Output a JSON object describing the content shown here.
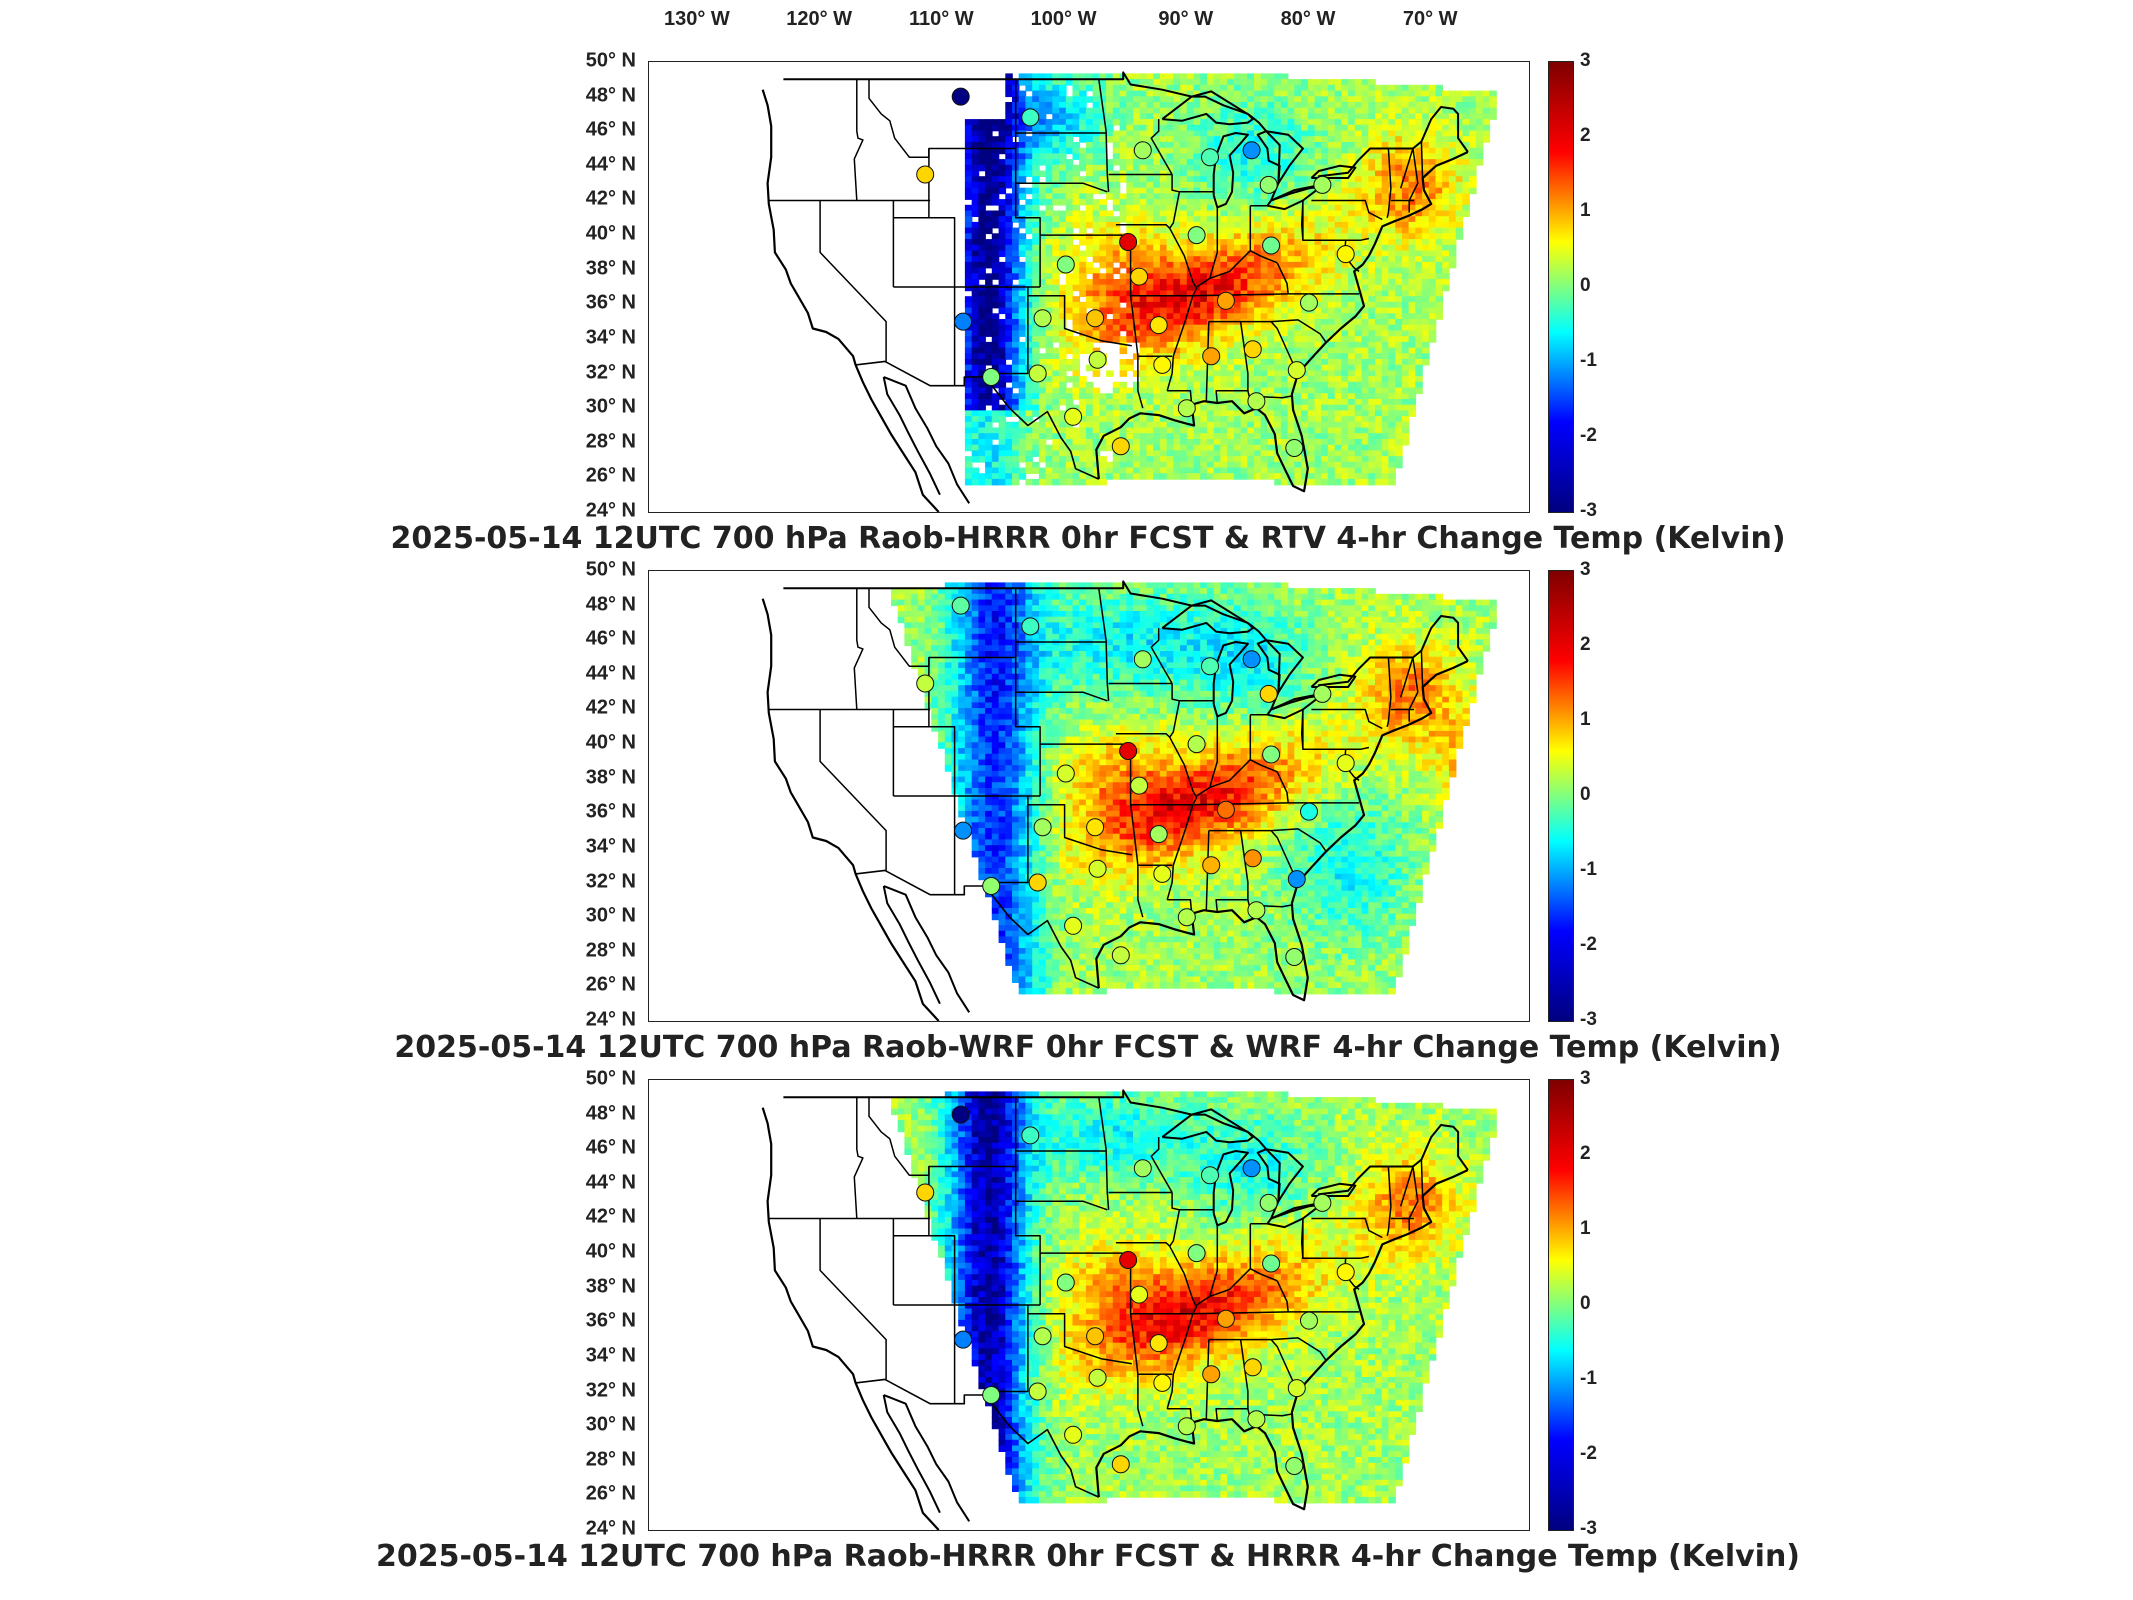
{
  "longitude_labels": [
    "130° W",
    "120° W",
    "110° W",
    "100° W",
    "90° W",
    "80° W",
    "70° W"
  ],
  "latitude_labels": [
    "50° N",
    "48° N",
    "46° N",
    "44° N",
    "42° N",
    "40° N",
    "38° N",
    "36° N",
    "34° N",
    "32° N",
    "30° N",
    "28° N",
    "26° N",
    "24° N"
  ],
  "colorbar": {
    "ticks": [
      "3",
      "2",
      "1",
      "0",
      "-1",
      "-2",
      "-3"
    ],
    "range": [
      -3,
      3
    ],
    "colormap": "jet",
    "stops": [
      "#00007f",
      "#0000ff",
      "#00ffff",
      "#ffff00",
      "#ff0000",
      "#7f0000"
    ]
  },
  "panels": [
    {
      "title": "2025-05-14 12UTC 700 hPa Raob-HRRR 0hr FCST & RTV 4-hr Change Temp (Kelvin)",
      "field": "rtv"
    },
    {
      "title": "2025-05-14 12UTC 700 hPa Raob-WRF 0hr FCST & WRF 4-hr Change Temp (Kelvin)",
      "field": "wrf"
    },
    {
      "title": "2025-05-14 12UTC 700 hPa Raob-HRRR 0hr FCST & HRRR 4-hr Change Temp (Kelvin)",
      "field": "hrrr"
    }
  ],
  "raob_stations": [
    {
      "lon": -108.5,
      "lat": 48.0,
      "v": [
        -3.0,
        -0.2,
        -3.0
      ]
    },
    {
      "lon": -102.8,
      "lat": 46.8,
      "v": [
        -0.4,
        -0.4,
        -0.4
      ]
    },
    {
      "lon": -111.4,
      "lat": 43.5,
      "v": [
        1.0,
        0.4,
        1.0
      ]
    },
    {
      "lon": -93.6,
      "lat": 44.9,
      "v": [
        0.2,
        0.2,
        0.2
      ]
    },
    {
      "lon": -88.1,
      "lat": 44.5,
      "v": [
        -0.3,
        -0.3,
        -0.3
      ]
    },
    {
      "lon": -84.7,
      "lat": 44.9,
      "v": [
        -1.4,
        -1.4,
        -1.4
      ]
    },
    {
      "lon": -83.3,
      "lat": 42.9,
      "v": [
        0.1,
        1.0,
        0.1
      ]
    },
    {
      "lon": -78.9,
      "lat": 42.9,
      "v": [
        0.2,
        0.2,
        0.2
      ]
    },
    {
      "lon": -94.8,
      "lat": 39.6,
      "v": [
        2.4,
        2.4,
        2.4
      ]
    },
    {
      "lon": -99.9,
      "lat": 38.3,
      "v": [
        0.0,
        0.5,
        0.0
      ]
    },
    {
      "lon": -89.2,
      "lat": 40.0,
      "v": [
        0.0,
        0.3,
        0.0
      ]
    },
    {
      "lon": -83.1,
      "lat": 39.4,
      "v": [
        -0.1,
        0.0,
        -0.1
      ]
    },
    {
      "lon": -77.0,
      "lat": 38.9,
      "v": [
        0.8,
        0.6,
        0.8
      ]
    },
    {
      "lon": -97.5,
      "lat": 35.2,
      "v": [
        1.1,
        0.9,
        1.1
      ]
    },
    {
      "lon": -93.9,
      "lat": 37.6,
      "v": [
        1.0,
        0.4,
        0.6
      ]
    },
    {
      "lon": -92.3,
      "lat": 34.8,
      "v": [
        0.9,
        0.2,
        0.9
      ]
    },
    {
      "lon": -86.8,
      "lat": 36.2,
      "v": [
        1.3,
        1.6,
        1.3
      ]
    },
    {
      "lon": -80.0,
      "lat": 36.1,
      "v": [
        0.2,
        -0.6,
        0.2
      ]
    },
    {
      "lon": -108.3,
      "lat": 35.0,
      "v": [
        -1.5,
        -1.4,
        -1.5
      ]
    },
    {
      "lon": -101.8,
      "lat": 35.2,
      "v": [
        0.3,
        0.2,
        0.3
      ]
    },
    {
      "lon": -106.0,
      "lat": 31.8,
      "v": [
        0.0,
        0.1,
        0.0
      ]
    },
    {
      "lon": -102.2,
      "lat": 32.0,
      "v": [
        0.4,
        1.0,
        0.4
      ]
    },
    {
      "lon": -97.3,
      "lat": 32.8,
      "v": [
        0.4,
        0.5,
        0.4
      ]
    },
    {
      "lon": -92.0,
      "lat": 32.5,
      "v": [
        0.8,
        0.6,
        0.8
      ]
    },
    {
      "lon": -88.0,
      "lat": 33.0,
      "v": [
        1.3,
        1.2,
        1.3
      ]
    },
    {
      "lon": -84.6,
      "lat": 33.4,
      "v": [
        1.0,
        1.4,
        1.0
      ]
    },
    {
      "lon": -81.0,
      "lat": 32.2,
      "v": [
        0.5,
        -1.4,
        0.5
      ]
    },
    {
      "lon": -99.3,
      "lat": 29.5,
      "v": [
        0.6,
        0.6,
        0.6
      ]
    },
    {
      "lon": -95.4,
      "lat": 27.8,
      "v": [
        1.0,
        0.4,
        1.0
      ]
    },
    {
      "lon": -90.0,
      "lat": 30.0,
      "v": [
        0.3,
        0.3,
        0.3
      ]
    },
    {
      "lon": -84.3,
      "lat": 30.4,
      "v": [
        0.3,
        0.3,
        0.3
      ]
    },
    {
      "lon": -81.2,
      "lat": 27.7,
      "v": [
        0.1,
        0.1,
        0.1
      ]
    }
  ]
}
